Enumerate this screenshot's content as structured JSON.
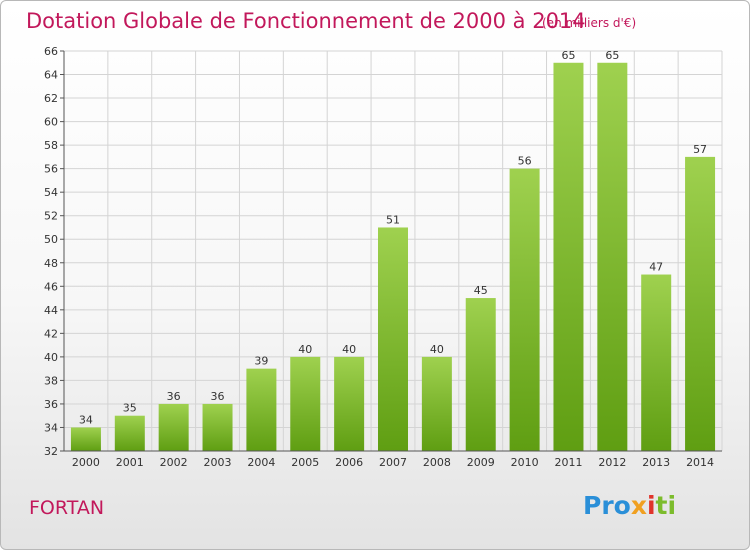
{
  "title": "Dotation Globale de Fonctionnement de 2000 à 2014",
  "subtitle": "(en milliers d'€)",
  "commune": "FORTAN",
  "logo": {
    "p1": "Pro",
    "p2": "x",
    "p3": "i",
    "p4": "ti"
  },
  "colors": {
    "title": "#c2185b",
    "bar_top": "#9fd14f",
    "bar_bottom": "#5f9e12",
    "grid": "#d4d4d4"
  },
  "chart_data": {
    "type": "bar",
    "categories": [
      "2000",
      "2001",
      "2002",
      "2003",
      "2004",
      "2005",
      "2006",
      "2007",
      "2008",
      "2009",
      "2010",
      "2011",
      "2012",
      "2013",
      "2014"
    ],
    "values": [
      34,
      35,
      36,
      36,
      39,
      40,
      40,
      51,
      40,
      45,
      56,
      65,
      65,
      47,
      57
    ],
    "ylim": [
      32,
      66
    ],
    "yticks": [
      32,
      34,
      36,
      38,
      40,
      42,
      44,
      46,
      48,
      50,
      52,
      54,
      56,
      58,
      60,
      62,
      64,
      66
    ],
    "grid": true
  }
}
